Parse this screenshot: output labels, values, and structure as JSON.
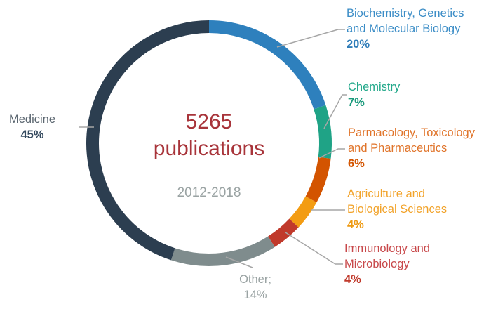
{
  "chart_data": {
    "type": "pie",
    "subtype": "donut",
    "title": "5265 publications",
    "subtitle": "2012-2018",
    "center": {
      "count": "5265",
      "unit": "publications",
      "years": "2012-2018"
    },
    "start_angle_deg": 0,
    "direction": "clockwise",
    "categories": [
      "Biochemistry, Genetics and Molecular Biology",
      "Chemistry",
      "Parmacology, Toxicology and Pharmaceutics",
      "Agriculture and Biological Sciences",
      "Immunology and Microbiology",
      "Other",
      "Medicine"
    ],
    "values": [
      20,
      7,
      6,
      4,
      4,
      14,
      45
    ],
    "colors": [
      "#2e80bd",
      "#1fa386",
      "#d35400",
      "#f39c12",
      "#c0392b",
      "#7f8c8d",
      "#2c3e50"
    ],
    "legend_position": "callout labels"
  },
  "labels": {
    "biochem": {
      "line1": "Biochemistry, Genetics",
      "line2": "and Molecular Biology",
      "pct": "20%"
    },
    "chemistry": {
      "line1": "Chemistry",
      "pct": "7%"
    },
    "pharma": {
      "line1": "Parmacology, Toxicology",
      "line2": "and Pharmaceutics",
      "pct": "6%"
    },
    "agri": {
      "line1": "Agriculture and",
      "line2": "Biological Sciences",
      "pct": "4%"
    },
    "immuno": {
      "line1": "Immunology and",
      "line2": "Microbiology",
      "pct": "4%"
    },
    "other": {
      "line1": "Other;",
      "pct": "14%"
    },
    "medicine": {
      "line1": "Medicine",
      "pct": "45%"
    }
  },
  "colors": {
    "biochem_text": "#3a8cc6",
    "chemistry_text": "#22a88a",
    "pharma_text": "#e0742a",
    "agri_text": "#f2a32a",
    "immuno_text": "#c8484a",
    "other_text": "#9aa3a3",
    "medicine_text": "#5b6670",
    "leader_line": "#a6a6a6"
  }
}
